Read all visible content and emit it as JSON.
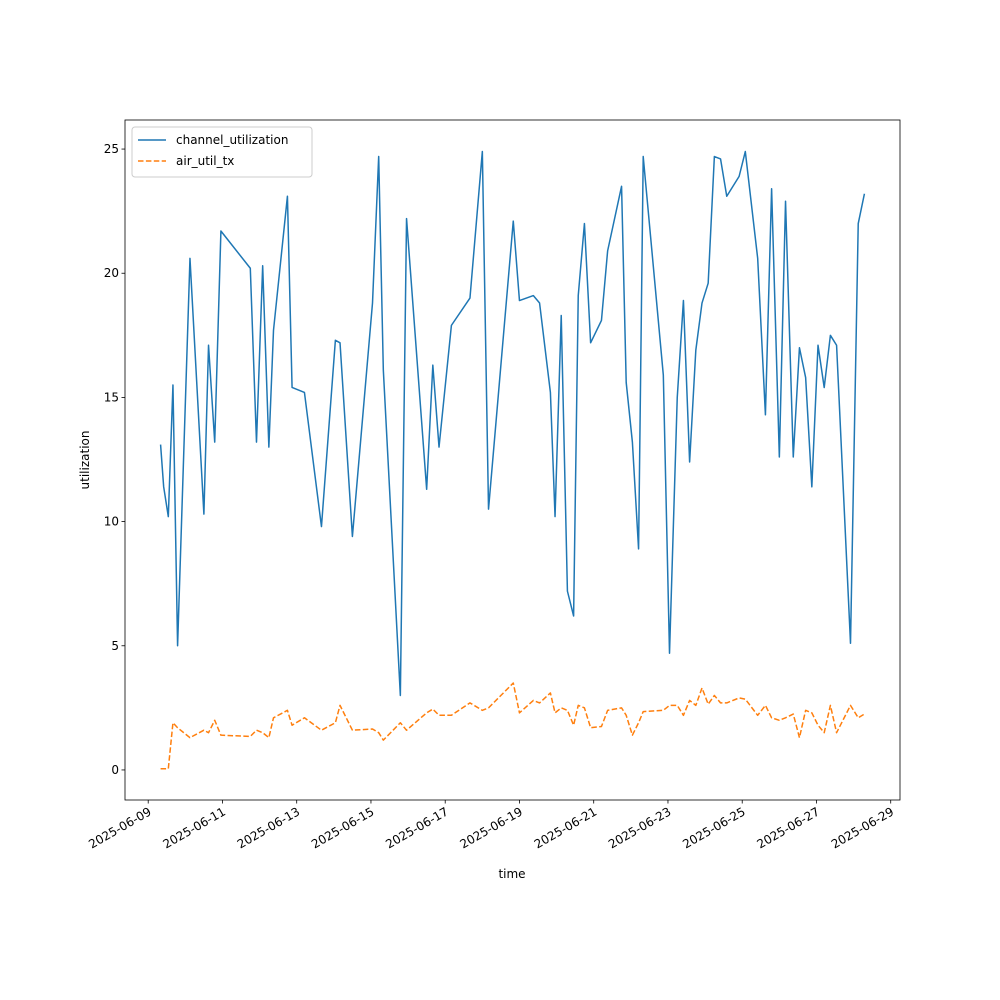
{
  "chart_data": {
    "type": "line",
    "xlabel": "time",
    "ylabel": "utilization",
    "x": [
      "2025-06-09T08:00",
      "2025-06-09T10:00",
      "2025-06-09T13:00",
      "2025-06-09T16:00",
      "2025-06-09T19:00",
      "2025-06-10T03:00",
      "2025-06-10T12:00",
      "2025-06-10T15:00",
      "2025-06-10T19:00",
      "2025-06-10T23:00",
      "2025-06-11T18:00",
      "2025-06-11T22:00",
      "2025-06-12T02:00",
      "2025-06-12T06:00",
      "2025-06-12T09:00",
      "2025-06-12T18:00",
      "2025-06-12T21:00",
      "2025-06-13T05:00",
      "2025-06-13T16:00",
      "2025-06-14T01:00",
      "2025-06-14T04:00",
      "2025-06-14T12:00",
      "2025-06-15T01:00",
      "2025-06-15T05:00",
      "2025-06-15T08:00",
      "2025-06-15T19:00",
      "2025-06-15T23:00",
      "2025-06-16T12:00",
      "2025-06-16T16:00",
      "2025-06-16T20:00",
      "2025-06-17T04:00",
      "2025-06-17T16:00",
      "2025-06-18T00:00",
      "2025-06-18T04:00",
      "2025-06-18T20:00",
      "2025-06-19T00:00",
      "2025-06-19T09:00",
      "2025-06-19T13:00",
      "2025-06-19T20:00",
      "2025-06-19T23:00",
      "2025-06-20T03:00",
      "2025-06-20T07:00",
      "2025-06-20T11:00",
      "2025-06-20T14:00",
      "2025-06-20T18:00",
      "2025-06-20T22:00",
      "2025-06-21T05:00",
      "2025-06-21T09:00",
      "2025-06-21T18:00",
      "2025-06-21T21:00",
      "2025-06-22T01:00",
      "2025-06-22T05:00",
      "2025-06-22T08:00",
      "2025-06-22T21:00",
      "2025-06-23T01:00",
      "2025-06-23T06:00",
      "2025-06-23T10:00",
      "2025-06-23T14:00",
      "2025-06-23T18:00",
      "2025-06-23T22:00",
      "2025-06-24T02:00",
      "2025-06-24T06:00",
      "2025-06-24T10:00",
      "2025-06-24T14:00",
      "2025-06-24T22:00",
      "2025-06-25T02:00",
      "2025-06-25T10:00",
      "2025-06-25T15:00",
      "2025-06-25T19:00",
      "2025-06-26T00:00",
      "2025-06-26T04:00",
      "2025-06-26T09:00",
      "2025-06-26T13:00",
      "2025-06-26T17:00",
      "2025-06-26T21:00",
      "2025-06-27T01:00",
      "2025-06-27T05:00",
      "2025-06-27T09:00",
      "2025-06-27T13:00",
      "2025-06-27T22:00",
      "2025-06-28T03:00",
      "2025-06-28T07:00"
    ],
    "series": [
      {
        "name": "channel_utilization",
        "color": "#1f77b4",
        "dash": false,
        "values": [
          13.1,
          11.4,
          10.2,
          15.5,
          5.0,
          20.6,
          10.3,
          17.1,
          13.2,
          21.7,
          20.2,
          13.2,
          20.3,
          13.0,
          17.7,
          23.1,
          15.4,
          15.2,
          9.8,
          17.3,
          17.2,
          9.4,
          18.8,
          24.7,
          16.1,
          3.0,
          22.2,
          11.3,
          16.3,
          13.0,
          17.9,
          19.0,
          24.9,
          10.5,
          22.1,
          18.9,
          19.1,
          18.8,
          15.2,
          10.2,
          18.3,
          7.2,
          6.2,
          19.1,
          22.0,
          17.2,
          18.1,
          20.9,
          23.5,
          15.6,
          13.2,
          8.9,
          24.7,
          15.9,
          4.7,
          15.0,
          18.9,
          12.4,
          16.9,
          18.8,
          19.6,
          24.7,
          24.6,
          23.1,
          23.9,
          24.9,
          20.6,
          14.3,
          23.4,
          12.6,
          22.9,
          12.6,
          17.0,
          15.8,
          11.4,
          17.1,
          15.4,
          17.5,
          17.1,
          5.1,
          22.0,
          23.2
        ]
      },
      {
        "name": "air_util_tx",
        "color": "#ff7f0e",
        "dash": true,
        "values": [
          0.05,
          0.05,
          0.05,
          1.9,
          1.7,
          1.3,
          1.6,
          1.5,
          2.0,
          1.4,
          1.35,
          1.6,
          1.5,
          1.3,
          2.1,
          2.4,
          1.8,
          2.1,
          1.6,
          1.9,
          2.6,
          1.6,
          1.65,
          1.5,
          1.2,
          1.9,
          1.6,
          2.3,
          2.45,
          2.2,
          2.2,
          2.7,
          2.4,
          2.5,
          3.5,
          2.3,
          2.8,
          2.7,
          3.1,
          2.3,
          2.5,
          2.4,
          1.8,
          2.6,
          2.5,
          1.7,
          1.75,
          2.4,
          2.5,
          2.2,
          1.4,
          1.9,
          2.35,
          2.4,
          2.6,
          2.6,
          2.2,
          2.8,
          2.6,
          3.3,
          2.65,
          3.0,
          2.7,
          2.7,
          2.9,
          2.85,
          2.2,
          2.6,
          2.1,
          2.0,
          2.1,
          2.25,
          1.3,
          2.4,
          2.3,
          1.8,
          1.5,
          2.6,
          1.5,
          2.6,
          2.1,
          2.25
        ]
      }
    ],
    "xlim": [
      "2025-06-08T09:00",
      "2025-06-29T06:00"
    ],
    "xticks": [
      "2025-06-09",
      "2025-06-11",
      "2025-06-13",
      "2025-06-15",
      "2025-06-17",
      "2025-06-19",
      "2025-06-21",
      "2025-06-23",
      "2025-06-25",
      "2025-06-27",
      "2025-06-29"
    ],
    "ylim": [
      -1.21,
      26.17
    ],
    "yticks": [
      0,
      5,
      10,
      15,
      20,
      25
    ],
    "legend": "upper left",
    "grid": false
  }
}
